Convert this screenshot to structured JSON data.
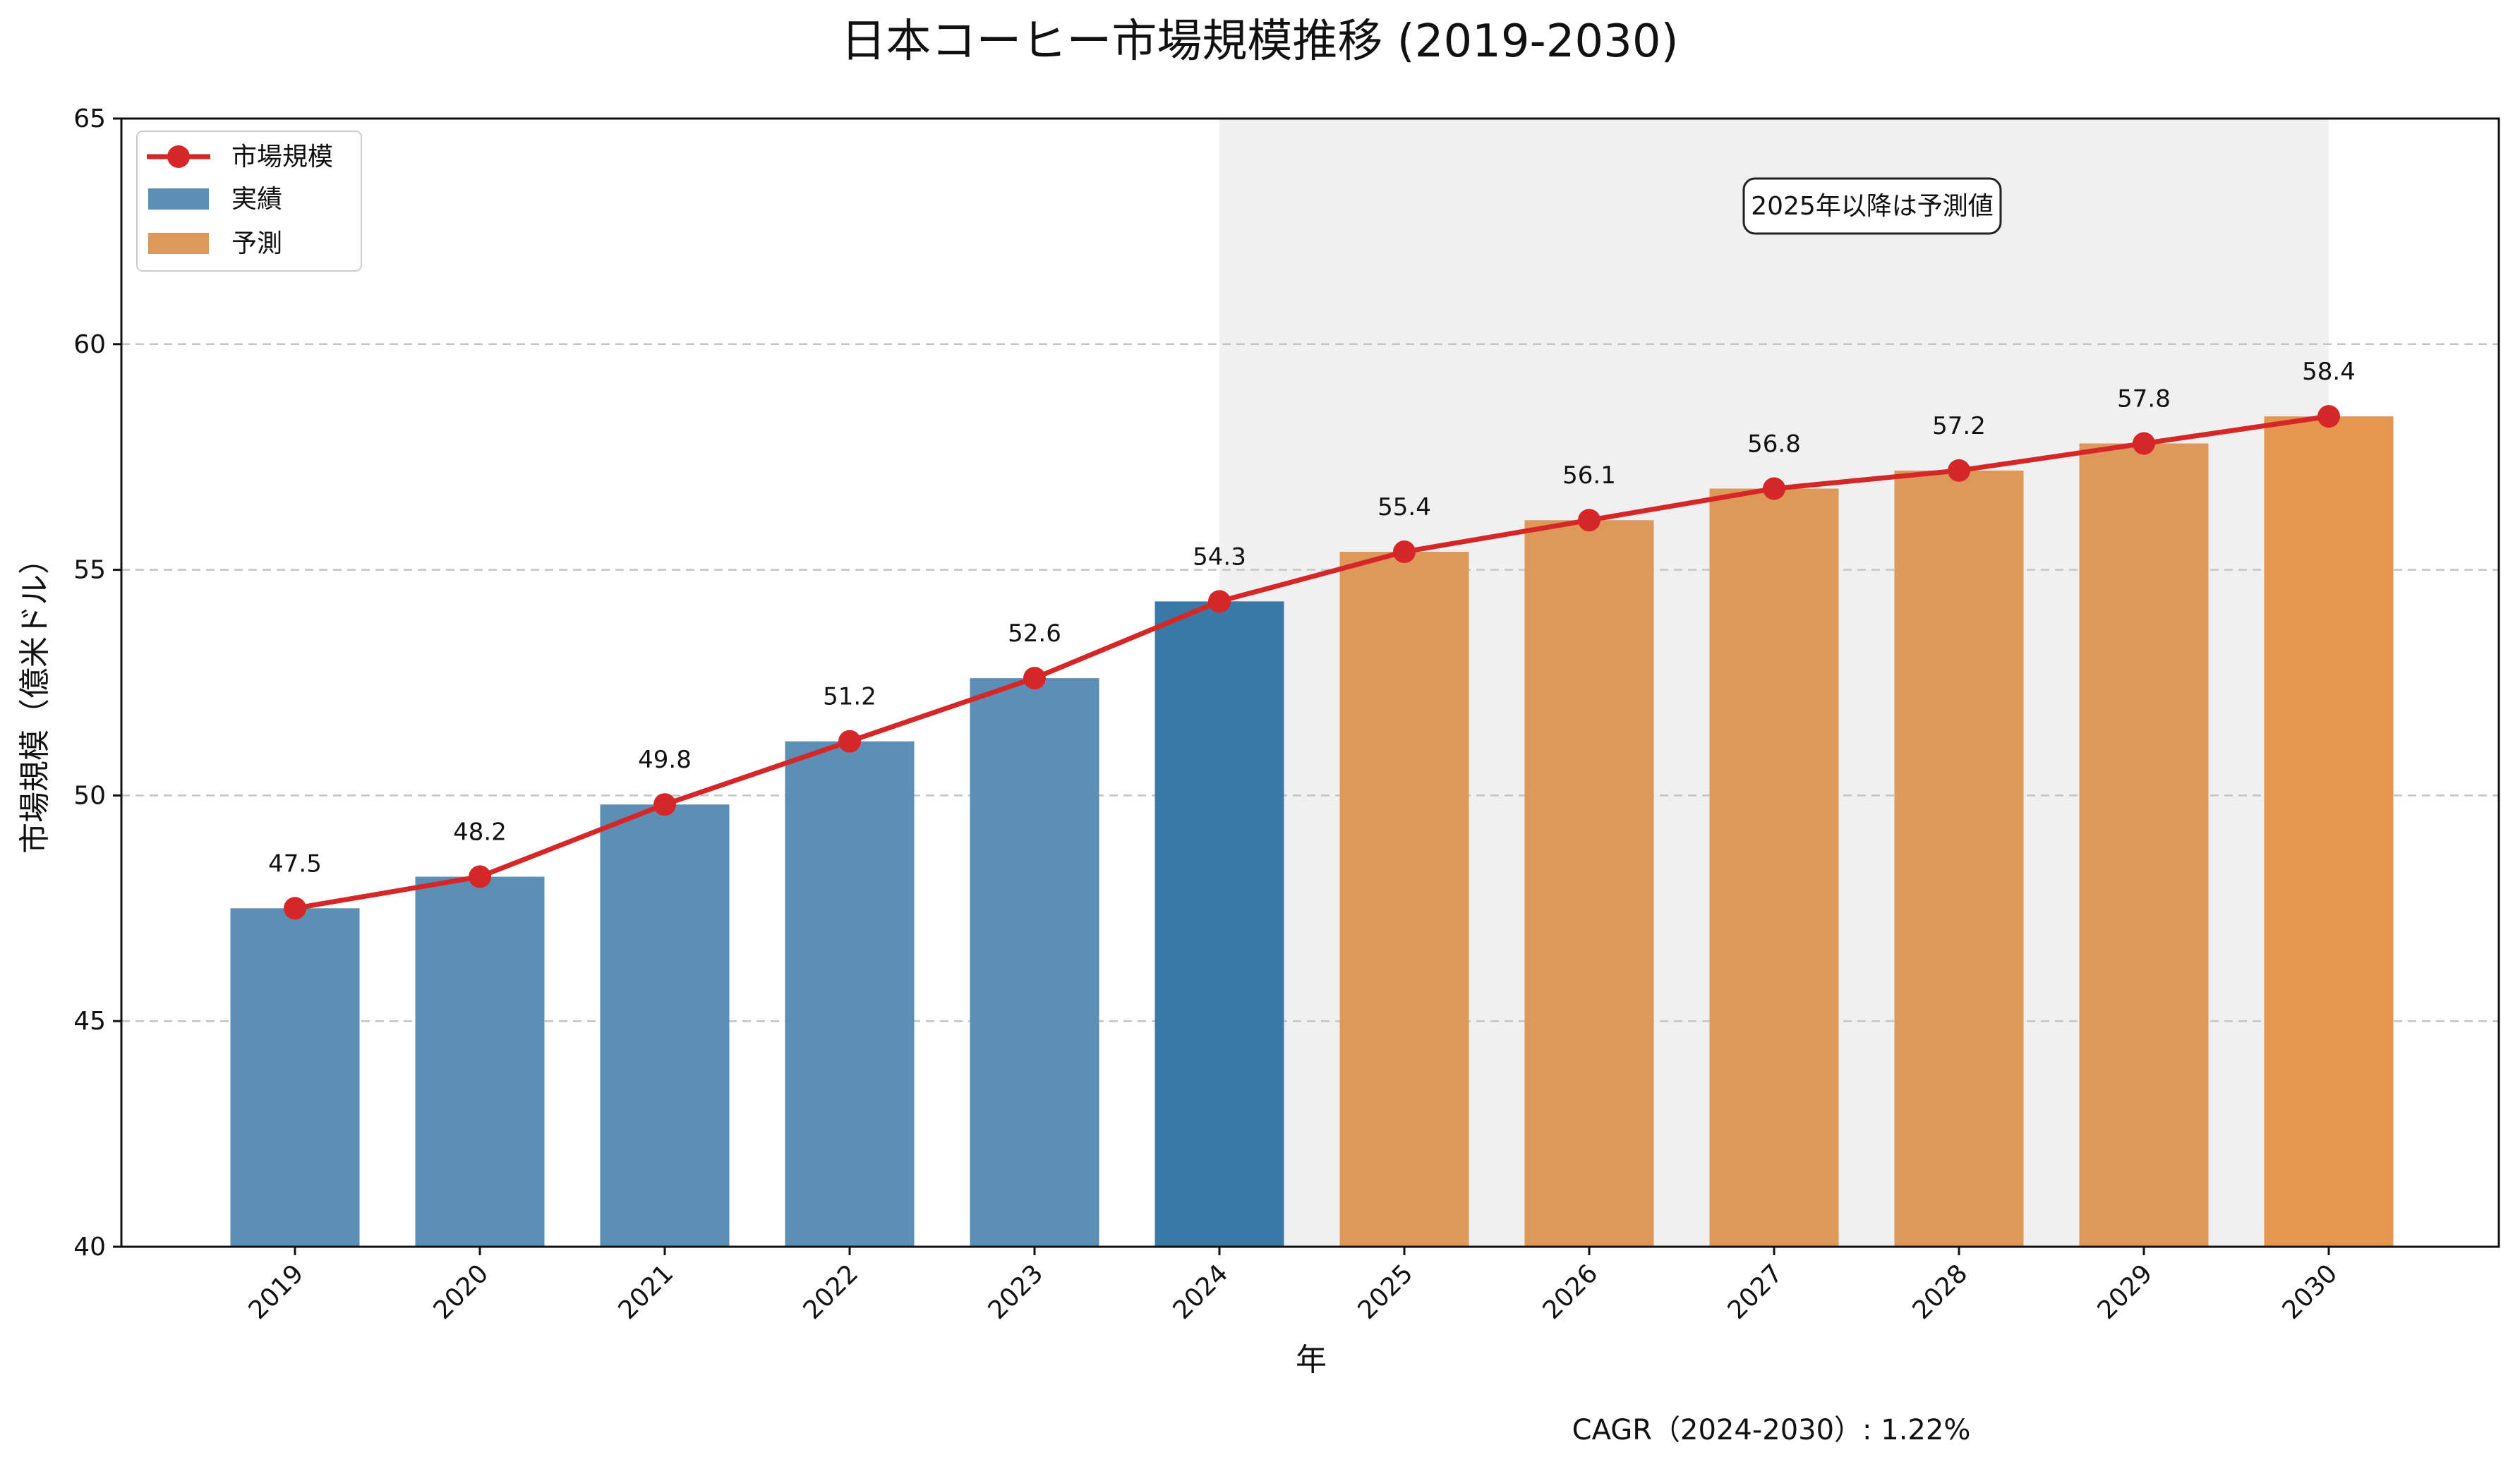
{
  "chart_data": {
    "type": "bar",
    "title": "日本コーヒー市場規模推移 (2019-2030)",
    "xlabel": "年",
    "ylabel": "市場規模（億米ドル）",
    "categories": [
      "2019",
      "2020",
      "2021",
      "2022",
      "2023",
      "2024",
      "2025",
      "2026",
      "2027",
      "2028",
      "2029",
      "2030"
    ],
    "values": [
      47.5,
      48.2,
      49.8,
      51.2,
      52.6,
      54.3,
      55.4,
      56.1,
      56.8,
      57.2,
      57.8,
      58.4
    ],
    "value_labels": [
      "47.5",
      "48.2",
      "49.8",
      "51.2",
      "52.6",
      "54.3",
      "55.4",
      "56.1",
      "56.8",
      "57.2",
      "57.8",
      "58.4"
    ],
    "bar_kind": [
      "actual",
      "actual",
      "actual",
      "actual",
      "actual",
      "actual",
      "forecast",
      "forecast",
      "forecast",
      "forecast",
      "forecast",
      "forecast"
    ],
    "ylim": [
      40,
      65
    ],
    "yticks": [
      40,
      45,
      50,
      55,
      60,
      65
    ],
    "grid": true,
    "forecast_shade_range": [
      "2024",
      "2030"
    ],
    "series": [
      {
        "name": "市場規模",
        "type": "line",
        "values": [
          47.5,
          48.2,
          49.8,
          51.2,
          52.6,
          54.3,
          55.4,
          56.1,
          56.8,
          57.2,
          57.8,
          58.4
        ]
      }
    ],
    "legend": {
      "position": "top-left",
      "entries": [
        {
          "label": "市場規模",
          "kind": "line"
        },
        {
          "label": "実績",
          "kind": "actual"
        },
        {
          "label": "予測",
          "kind": "forecast"
        }
      ]
    },
    "annotation": "2025年以降は予測値",
    "footer": "CAGR（2024-2030）: 1.22%",
    "colors": {
      "actual": "#5b8fb5",
      "actual_highlight": "#3a78a6",
      "forecast": "#dd985a",
      "forecast_highlight": "#e5964f",
      "line": "#d62728",
      "shade": "#f0f0f0",
      "grid": "#c4c4c4"
    }
  }
}
